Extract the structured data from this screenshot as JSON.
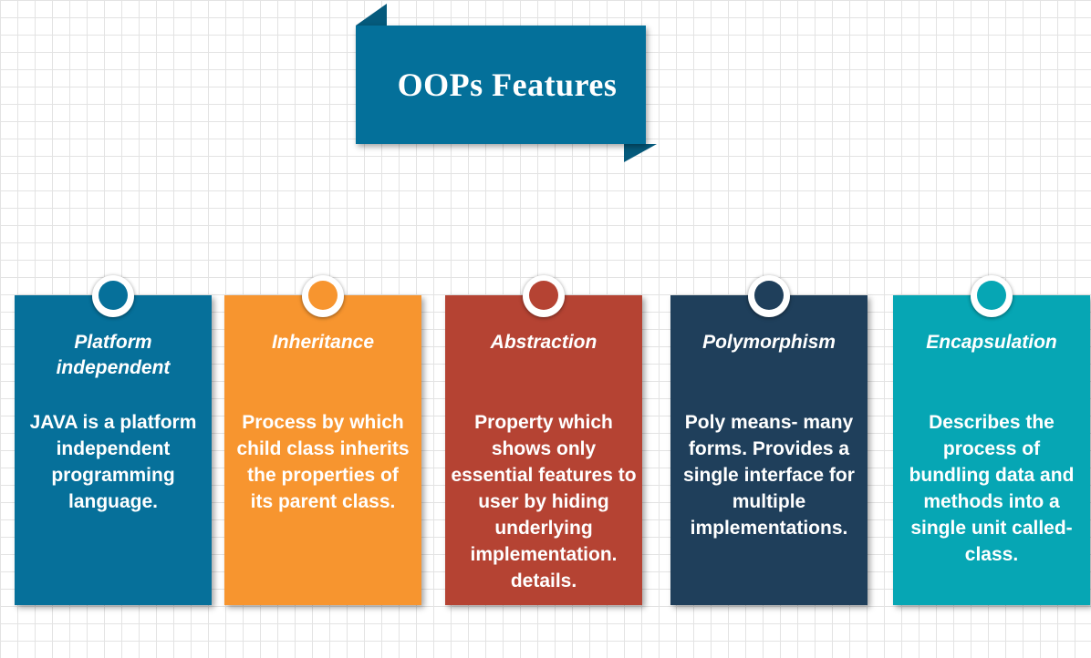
{
  "banner": {
    "title": "OOPs Features",
    "color": "#04709a",
    "fold_color": "#055a7c"
  },
  "cards": [
    {
      "title": "Platform independent",
      "description": "JAVA is a platform independent programming language.",
      "color": "#06709a",
      "knob_color": "#06709a"
    },
    {
      "title": "Inheritance",
      "description": "Process by which child class inherits the properties of its parent class.",
      "color": "#f7952f",
      "knob_color": "#f7952f"
    },
    {
      "title": "Abstraction",
      "description": "Property which shows only essential features to user by hiding underlying implementation. details.",
      "color": "#b54333",
      "knob_color": "#b54333"
    },
    {
      "title": "Polymorphism",
      "description": "Poly means- many forms. Provides a single interface for multiple implementations.",
      "color": "#1f3f5b",
      "knob_color": "#1f3f5b"
    },
    {
      "title": "Encapsulation",
      "description": "Describes the process of bundling data and methods into a single unit called- class.",
      "color": "#06a6b4",
      "knob_color": "#06a6b4"
    }
  ]
}
